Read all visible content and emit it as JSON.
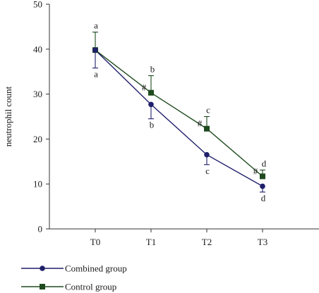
{
  "chart_data": {
    "type": "line",
    "ylabel": "neutrophil count",
    "xlabel": "",
    "ylim": [
      0,
      50
    ],
    "yticks": [
      0,
      10,
      20,
      30,
      40,
      50
    ],
    "categories": [
      "T0",
      "T1",
      "T2",
      "T3"
    ],
    "legend_position": "bottom-left",
    "series": [
      {
        "name": "Combined group",
        "color": "#1f1f6b",
        "marker": "circle",
        "values": [
          39.8,
          27.7,
          16.5,
          9.5
        ],
        "error": [
          4.0,
          3.2,
          2.2,
          1.3
        ],
        "error_dir": "down",
        "letters": [
          "a",
          "b",
          "c",
          "d"
        ]
      },
      {
        "name": "Control group",
        "color": "#1e4a1e",
        "marker": "square",
        "values": [
          39.8,
          30.3,
          22.3,
          11.7
        ],
        "error": [
          4.0,
          3.8,
          2.7,
          1.4
        ],
        "error_dir": "up",
        "letters": [
          "a",
          "b",
          "c",
          "d"
        ],
        "hash": [
          "",
          "#",
          "#",
          "#"
        ]
      }
    ]
  }
}
